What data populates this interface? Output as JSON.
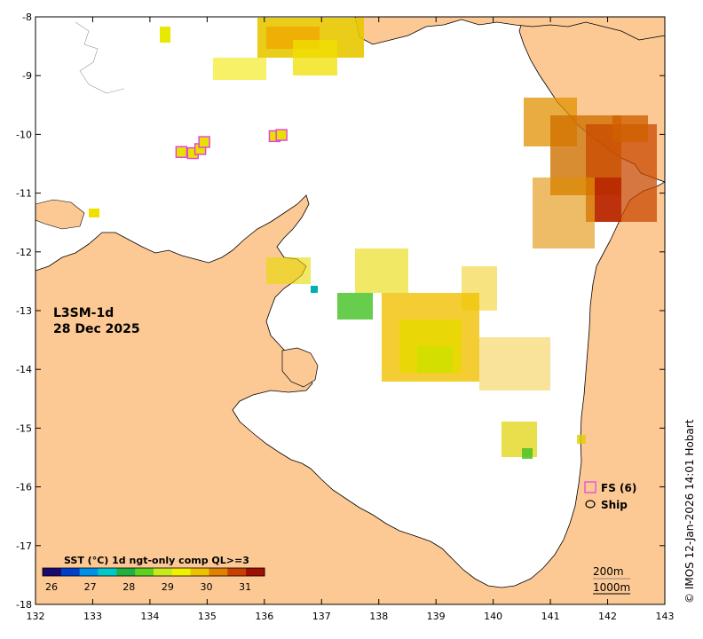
{
  "product_label": "L3SM-1d",
  "date_label": "28 Dec 2025",
  "credit": "© IMOS 12-Jan-2026 14:01 Hobart",
  "axes": {
    "lon_ticks": [
      "132",
      "133",
      "134",
      "135",
      "136",
      "137",
      "138",
      "139",
      "140",
      "141",
      "142",
      "143"
    ],
    "lat_ticks": [
      "-8",
      "-9",
      "-10",
      "-11",
      "-12",
      "-13",
      "-14",
      "-15",
      "-16",
      "-17",
      "-18"
    ],
    "lon_range": [
      132,
      143
    ],
    "lat_range": [
      -18,
      -8
    ]
  },
  "colorbar": {
    "title": "SST (°C) 1d ngt-only comp QL>=3",
    "ticks": [
      "26",
      "27",
      "28",
      "29",
      "30",
      "31"
    ],
    "range": [
      26,
      31.5
    ],
    "colors": [
      "#1a0a6e",
      "#0040c8",
      "#0090e8",
      "#00c8c8",
      "#20b040",
      "#60d020",
      "#c8e820",
      "#f0f000",
      "#f0c000",
      "#e08000",
      "#c84000",
      "#a01000"
    ]
  },
  "legend": {
    "fs_label": "FS (6)",
    "ship_label": "Ship"
  },
  "contours": {
    "label_200": "200m",
    "label_1000": "1000m"
  },
  "colors": {
    "land": "#fcc995",
    "sea": "#ffffff",
    "fs_marker": "#e040e0"
  },
  "fs_markers": [
    {
      "lon": 134.55,
      "lat": -10.3,
      "sst": 30.3
    },
    {
      "lon": 134.75,
      "lat": -10.32,
      "sst": 30.2
    },
    {
      "lon": 134.88,
      "lat": -10.25,
      "sst": 30.3
    },
    {
      "lon": 134.95,
      "lat": -10.13,
      "sst": 30.2
    },
    {
      "lon": 136.18,
      "lat": -10.03,
      "sst": 30.2
    },
    {
      "lon": 136.3,
      "lat": -10.01,
      "sst": 30.3
    }
  ]
}
